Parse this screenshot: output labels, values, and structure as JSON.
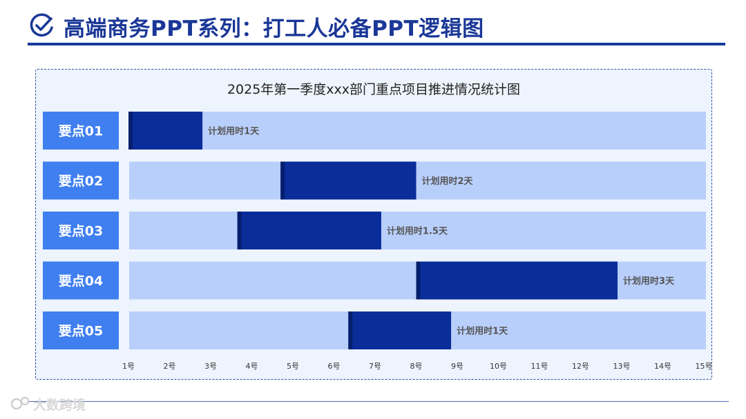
{
  "header": {
    "title": "高端商务PPT系列：打工人必备PPT逻辑图",
    "icon": "check-circle-icon"
  },
  "colors": {
    "accent": "#1a3797",
    "track": "#b9cffb",
    "bar": "#0a2d9a",
    "label_box": "#3f7ff0",
    "panel_bg": "#eef4fd"
  },
  "chart_data": {
    "type": "gantt",
    "title": "2025年第一季度xxx部门重点项目推进情况统计图",
    "x_ticks": [
      "1号",
      "2号",
      "3号",
      "4号",
      "5号",
      "6号",
      "7号",
      "8号",
      "9号",
      "10号",
      "11号",
      "12号",
      "13号",
      "14号",
      "15号"
    ],
    "x_range": [
      1,
      15.2
    ],
    "series": [
      {
        "name": "要点01",
        "start": 1.0,
        "end": 2.8,
        "label": "计划用时1天"
      },
      {
        "name": "要点02",
        "start": 4.7,
        "end": 8.0,
        "label": "计划用时2天"
      },
      {
        "name": "要点03",
        "start": 3.65,
        "end": 7.15,
        "label": "计划用时1.5天"
      },
      {
        "name": "要点04",
        "start": 8.0,
        "end": 12.9,
        "label": "计划用时3天"
      },
      {
        "name": "要点05",
        "start": 6.35,
        "end": 8.85,
        "label": "计划用时1天"
      }
    ]
  },
  "watermark": {
    "text": "大数跨境"
  }
}
